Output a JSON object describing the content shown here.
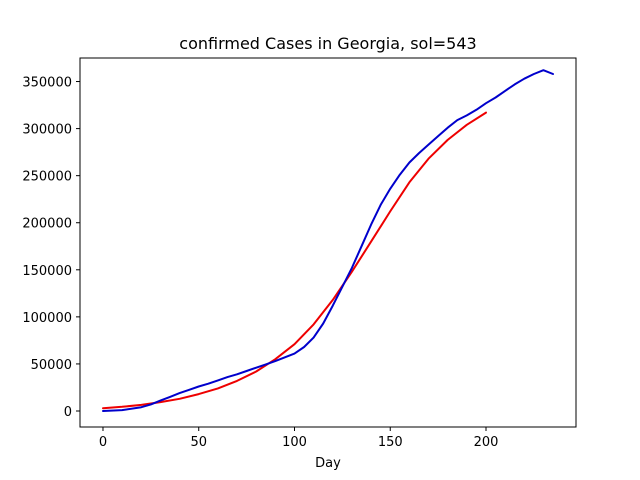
{
  "chart_data": {
    "type": "line",
    "title": "confirmed Cases in Georgia, sol=543",
    "xlabel": "Day",
    "ylabel": "",
    "xlim": [
      -12,
      247
    ],
    "ylim": [
      -17000,
      375000
    ],
    "xticks": [
      0,
      50,
      100,
      150,
      200
    ],
    "yticks": [
      0,
      50000,
      100000,
      150000,
      200000,
      250000,
      300000,
      350000
    ],
    "grid": false,
    "legend": "none",
    "series": [
      {
        "color": "#ee0000",
        "x": [
          0,
          10,
          20,
          30,
          40,
          50,
          60,
          70,
          80,
          90,
          100,
          110,
          120,
          130,
          140,
          150,
          160,
          170,
          180,
          190,
          200
        ],
        "y": [
          3000,
          4500,
          6500,
          9500,
          13000,
          18000,
          24000,
          32000,
          42000,
          55000,
          71000,
          92000,
          118000,
          148000,
          180000,
          212000,
          243000,
          268000,
          288000,
          304000,
          317000
        ]
      },
      {
        "color": "#0000cc",
        "x": [
          0,
          10,
          20,
          25,
          30,
          35,
          40,
          45,
          50,
          55,
          60,
          65,
          70,
          75,
          80,
          85,
          90,
          95,
          100,
          105,
          110,
          115,
          120,
          125,
          130,
          135,
          140,
          145,
          150,
          155,
          160,
          165,
          170,
          175,
          180,
          185,
          190,
          195,
          200,
          205,
          210,
          215,
          220,
          225,
          230,
          235
        ],
        "y": [
          0,
          1000,
          4000,
          7000,
          11000,
          15000,
          19000,
          22500,
          26000,
          29000,
          32500,
          36000,
          39000,
          42500,
          46000,
          49500,
          53000,
          57000,
          61000,
          68000,
          78000,
          93000,
          112000,
          132000,
          152000,
          175000,
          198000,
          219000,
          236000,
          251000,
          264000,
          274000,
          283000,
          292000,
          301000,
          309000,
          314000,
          320000,
          327000,
          333000,
          340000,
          347000,
          353000,
          358000,
          362000,
          358000
        ]
      }
    ]
  }
}
